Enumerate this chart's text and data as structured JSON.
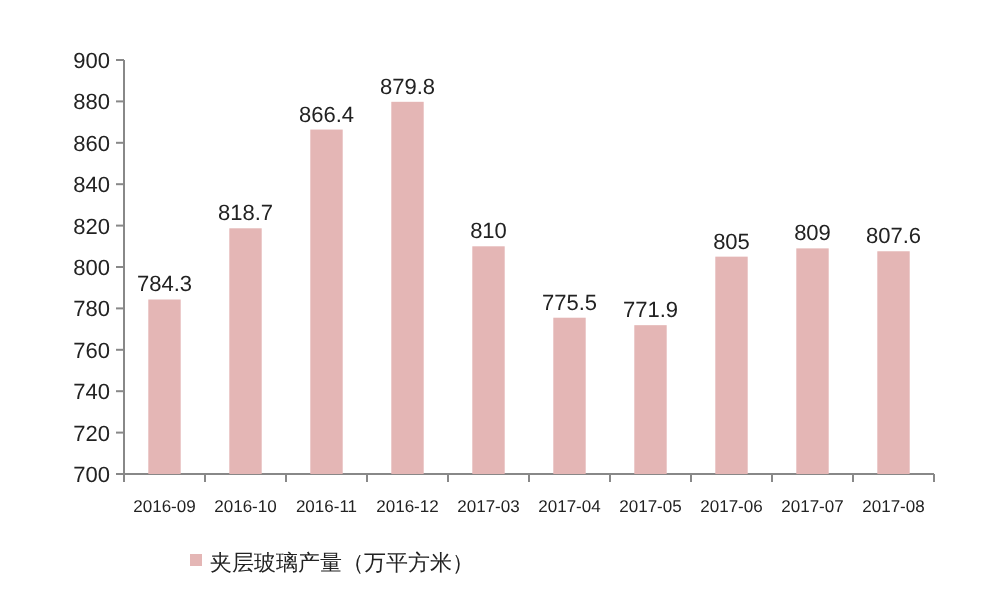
{
  "chart_data": {
    "type": "bar",
    "categories": [
      "2016-09",
      "2016-10",
      "2016-11",
      "2016-12",
      "2017-03",
      "2017-04",
      "2017-05",
      "2017-06",
      "2017-07",
      "2017-08"
    ],
    "series": [
      {
        "name": "夹层玻璃产量（万平方米）",
        "color": "#e4b6b5",
        "values": [
          784.3,
          818.7,
          866.4,
          879.8,
          810,
          775.5,
          771.9,
          805,
          809,
          807.6
        ]
      }
    ],
    "ylim": [
      700,
      900
    ],
    "yticks": [
      700,
      720,
      740,
      760,
      780,
      800,
      820,
      840,
      860,
      880,
      900
    ],
    "data_labels": true,
    "legend": "bottom left",
    "grid": false
  }
}
